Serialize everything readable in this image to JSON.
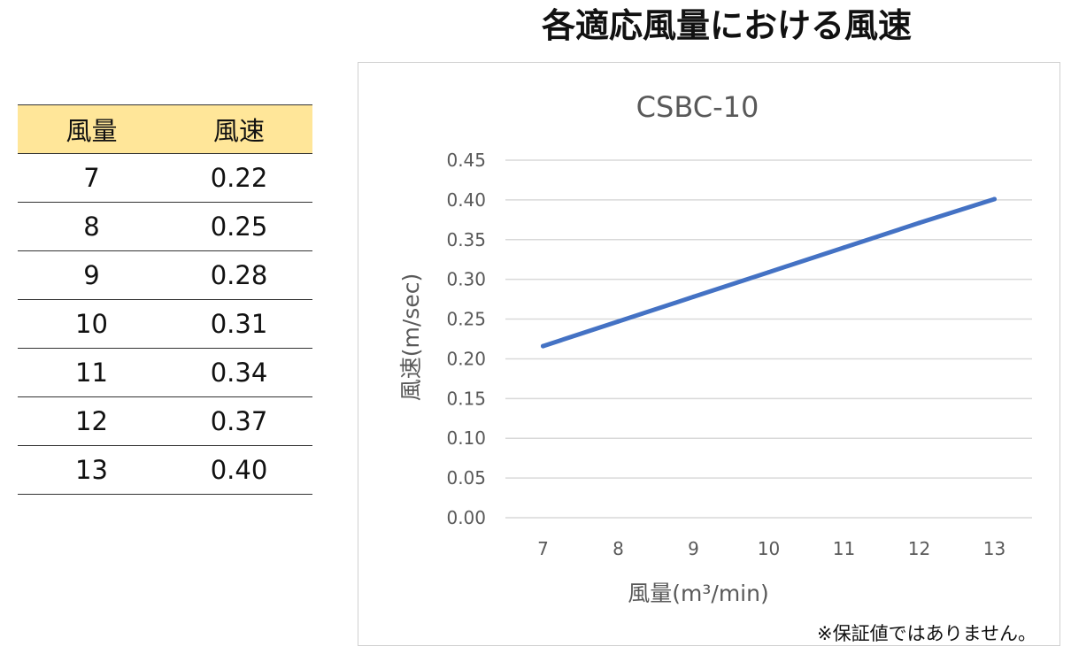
{
  "page_title": "各適応風量における風速",
  "table": {
    "headers": [
      "風量",
      "風速"
    ],
    "rows": [
      [
        "7",
        "0.22"
      ],
      [
        "8",
        "0.25"
      ],
      [
        "9",
        "0.28"
      ],
      [
        "10",
        "0.31"
      ],
      [
        "11",
        "0.34"
      ],
      [
        "12",
        "0.37"
      ],
      [
        "13",
        "0.40"
      ]
    ],
    "header_color": "#ffe699"
  },
  "chart_data": {
    "type": "line",
    "title": "CSBC-10",
    "categories": [
      "7",
      "8",
      "9",
      "10",
      "11",
      "12",
      "13"
    ],
    "series": [
      {
        "values": [
          0.216,
          0.247,
          0.278,
          0.309,
          0.34,
          0.371,
          0.401
        ],
        "color": "#4472c4"
      }
    ],
    "xlabel": "風量(m³/min)",
    "ylabel": "風速(m/sec)",
    "ylim": [
      0,
      0.45
    ],
    "ytick_step": 0.05,
    "ytick_labels": [
      "0.00",
      "0.05",
      "0.10",
      "0.15",
      "0.20",
      "0.25",
      "0.30",
      "0.35",
      "0.40",
      "0.45"
    ],
    "grid": true,
    "legend": "none",
    "note": "※保証値ではありません。"
  }
}
